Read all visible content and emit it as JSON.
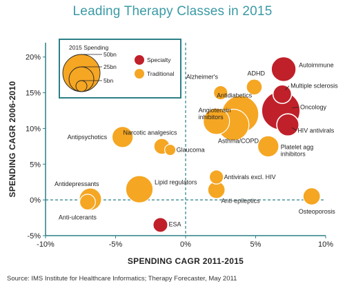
{
  "chart_data": {
    "type": "scatter",
    "title": "Leading Therapy Classes in 2015",
    "xlabel": "SPENDING CAGR 2011-2015",
    "ylabel": "SPENDING CAGR 2006-2010",
    "xlim": [
      -10,
      10
    ],
    "ylim": [
      -5,
      22
    ],
    "xticks": [
      {
        "v": -10,
        "label": "-10%"
      },
      {
        "v": -5,
        "label": "-5%"
      },
      {
        "v": 0,
        "label": "0%"
      },
      {
        "v": 5,
        "label": "5%"
      },
      {
        "v": 10,
        "label": "10%"
      }
    ],
    "yticks": [
      {
        "v": -5,
        "label": "-5%"
      },
      {
        "v": 0,
        "label": "0%"
      },
      {
        "v": 5,
        "label": "5%"
      },
      {
        "v": 10,
        "label": "10%"
      },
      {
        "v": 15,
        "label": "15%"
      },
      {
        "v": 20,
        "label": "20%"
      }
    ],
    "grid": false,
    "reference_lines": {
      "x": 0,
      "y": 0,
      "style": "dashed"
    },
    "legend": {
      "placement": "top-left",
      "size_title": "2015 Spending",
      "sizes": [
        {
          "label": "50bn",
          "value": 50
        },
        {
          "label": "25bn",
          "value": 25
        },
        {
          "label": "5bn",
          "value": 5
        }
      ],
      "types": [
        {
          "label": "Specialty",
          "color": "#c0202a"
        },
        {
          "label": "Traditional",
          "color": "#f5a623"
        }
      ]
    },
    "colors": {
      "Specialty": "#c0202a",
      "Traditional": "#f5a623",
      "Traditional_edge": "#ffffff",
      "axis": "#2a7f86"
    },
    "points": [
      {
        "name": "Autoimmune",
        "x": 7.0,
        "y": 18.3,
        "size": 25,
        "type": "Specialty"
      },
      {
        "name": "Multiple sclerosis",
        "x": 6.9,
        "y": 14.8,
        "size": 14,
        "type": "Specialty"
      },
      {
        "name": "Oncology",
        "x": 6.8,
        "y": 12.5,
        "size": 60,
        "type": "Specialty"
      },
      {
        "name": "HIV antivirals",
        "x": 7.3,
        "y": 10.5,
        "size": 20,
        "type": "Specialty"
      },
      {
        "name": "ESA",
        "x": -1.8,
        "y": -3.5,
        "size": 9,
        "type": "Specialty"
      },
      {
        "name": "Antidiabetics",
        "x": 3.9,
        "y": 12.0,
        "size": 55,
        "type": "Traditional"
      },
      {
        "name": "Asthma/COPD",
        "x": 3.4,
        "y": 10.5,
        "size": 40,
        "type": "Traditional"
      },
      {
        "name": "Angiotensin inhibitors",
        "x": 2.2,
        "y": 11.0,
        "size": 28,
        "type": "Traditional"
      },
      {
        "name": "ADHD",
        "x": 4.9,
        "y": 15.8,
        "size": 10,
        "type": "Traditional"
      },
      {
        "name": "Alzheimer's",
        "x": 2.5,
        "y": 15.0,
        "size": 8,
        "type": "Traditional"
      },
      {
        "name": "Platelet agg inhibitors",
        "x": 5.9,
        "y": 7.5,
        "size": 18,
        "type": "Traditional"
      },
      {
        "name": "Antipsychotics",
        "x": -4.5,
        "y": 8.8,
        "size": 18,
        "type": "Traditional"
      },
      {
        "name": "Narcotic analgesics",
        "x": -1.7,
        "y": 7.5,
        "size": 10,
        "type": "Traditional"
      },
      {
        "name": "Glaucoma",
        "x": -1.1,
        "y": 7.0,
        "size": 5,
        "type": "Traditional"
      },
      {
        "name": "Lipid regulators",
        "x": -3.3,
        "y": 1.5,
        "size": 30,
        "type": "Traditional"
      },
      {
        "name": "Antidepressants",
        "x": -6.8,
        "y": 0.1,
        "size": 20,
        "type": "Traditional"
      },
      {
        "name": "Anti-ulcerants",
        "x": -7.0,
        "y": -0.3,
        "size": 10,
        "type": "Traditional"
      },
      {
        "name": "Antivirals excl. HIV",
        "x": 2.2,
        "y": 3.2,
        "size": 8,
        "type": "Traditional"
      },
      {
        "name": "Anti-epileptics",
        "x": 2.2,
        "y": 1.4,
        "size": 12,
        "type": "Traditional"
      },
      {
        "name": "Osteoporosis",
        "x": 9.0,
        "y": 0.5,
        "size": 12,
        "type": "Traditional"
      }
    ]
  },
  "source": "Source: IMS Institute for Healthcare Informatics; Therapy Forecaster, May 2011"
}
